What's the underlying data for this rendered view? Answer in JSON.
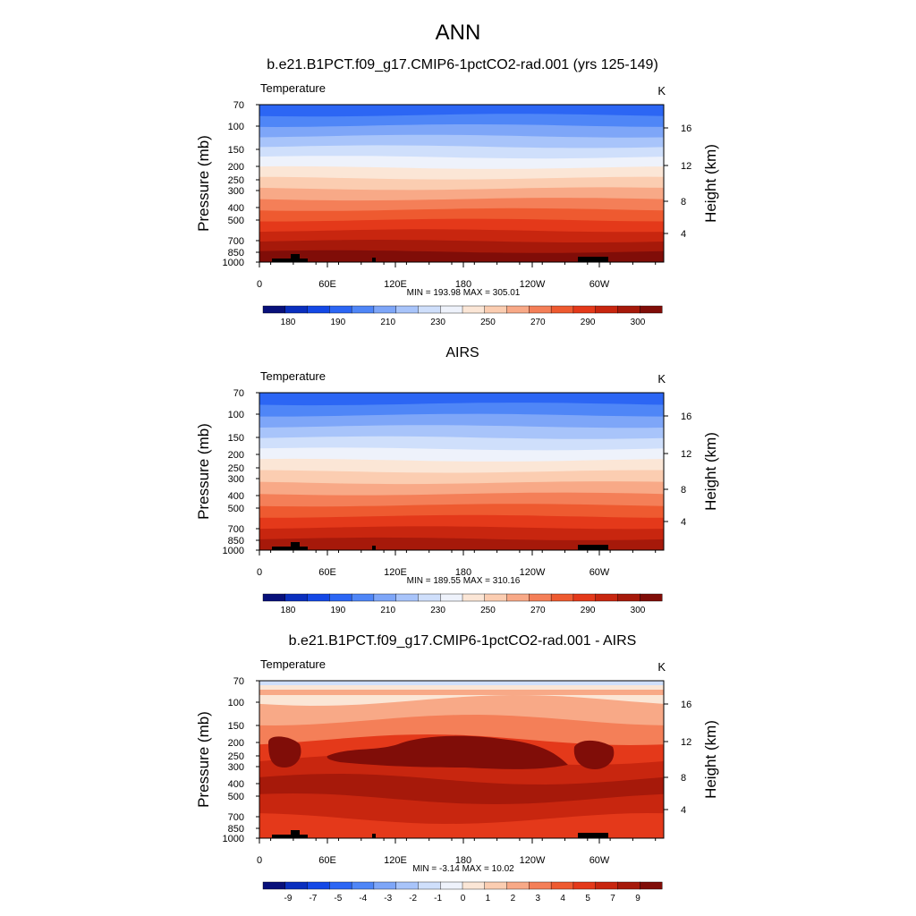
{
  "main_title": "ANN",
  "chart_data": [
    {
      "type": "heatmap",
      "title": "b.e21.B1PCT.f09_g17.CMIP6-1pctCO2-rad.001 (yrs 125-149)",
      "left_label": "Temperature",
      "unit": "K",
      "ylabel": "Pressure (mb)",
      "ylabel_right": "Height (km)",
      "x_ticks": [
        "0",
        "60E",
        "120E",
        "180",
        "120W",
        "60W"
      ],
      "y_ticks": [
        "70",
        "100",
        "150",
        "200",
        "250",
        "300",
        "400",
        "500",
        "700",
        "850",
        "1000"
      ],
      "y_right_ticks": [
        "16",
        "12",
        "8",
        "4"
      ],
      "stats": "MIN = 193.98  MAX = 305.01",
      "colorbar_labels": [
        "180",
        "190",
        "210",
        "230",
        "250",
        "270",
        "290",
        "300"
      ],
      "palette": [
        "#08107a",
        "#0a2fbe",
        "#1448e6",
        "#2c66f4",
        "#4f86f7",
        "#7ea6f8",
        "#a8c4fa",
        "#cfdffb",
        "#eef2fb",
        "#fbe6d6",
        "#fbcdb1",
        "#f8a987",
        "#f47f58",
        "#ee5a30",
        "#e4391a",
        "#c8260f",
        "#a6190a",
        "#800d08"
      ],
      "band_levels": [
        3,
        4,
        5,
        6,
        7,
        8,
        9,
        10,
        11,
        12,
        13,
        14,
        15,
        16,
        17
      ],
      "surface_bands": [
        16,
        17
      ]
    },
    {
      "type": "heatmap",
      "title": "AIRS",
      "left_label": "Temperature",
      "unit": "K",
      "ylabel": "Pressure (mb)",
      "ylabel_right": "Height (km)",
      "x_ticks": [
        "0",
        "60E",
        "120E",
        "180",
        "120W",
        "60W"
      ],
      "y_ticks": [
        "70",
        "100",
        "150",
        "200",
        "250",
        "300",
        "400",
        "500",
        "700",
        "850",
        "1000"
      ],
      "y_right_ticks": [
        "16",
        "12",
        "8",
        "4"
      ],
      "stats": "MIN = 189.55  MAX = 310.16",
      "colorbar_labels": [
        "180",
        "190",
        "210",
        "230",
        "250",
        "270",
        "290",
        "300"
      ],
      "palette": [
        "#08107a",
        "#0a2fbe",
        "#1448e6",
        "#2c66f4",
        "#4f86f7",
        "#7ea6f8",
        "#a8c4fa",
        "#cfdffb",
        "#eef2fb",
        "#fbe6d6",
        "#fbcdb1",
        "#f8a987",
        "#f47f58",
        "#ee5a30",
        "#e4391a",
        "#c8260f",
        "#a6190a",
        "#800d08"
      ],
      "band_levels": [
        3,
        4,
        5,
        6,
        7,
        8,
        9,
        10,
        11,
        12,
        13,
        14,
        15,
        16
      ],
      "surface_bands": [
        15
      ]
    },
    {
      "type": "heatmap",
      "title": "b.e21.B1PCT.f09_g17.CMIP6-1pctCO2-rad.001 - AIRS",
      "left_label": "Temperature",
      "unit": "K",
      "ylabel": "Pressure (mb)",
      "ylabel_right": "Height (km)",
      "x_ticks": [
        "0",
        "60E",
        "120E",
        "180",
        "120W",
        "60W"
      ],
      "y_ticks": [
        "70",
        "100",
        "150",
        "200",
        "250",
        "300",
        "400",
        "500",
        "700",
        "850",
        "1000"
      ],
      "y_right_ticks": [
        "16",
        "12",
        "8",
        "4"
      ],
      "stats": "MIN =  -3.14  MAX =  10.02",
      "colorbar_labels": [
        "-9",
        "-7",
        "-5",
        "-4",
        "-3",
        "-2",
        "-1",
        "0",
        "1",
        "2",
        "3",
        "4",
        "5",
        "7",
        "9"
      ],
      "palette": [
        "#08107a",
        "#0a2fbe",
        "#1448e6",
        "#2c66f4",
        "#4f86f7",
        "#7ea6f8",
        "#a8c4fa",
        "#cfdffb",
        "#eef2fb",
        "#fbe6d6",
        "#fbcdb1",
        "#f8a987",
        "#f47f58",
        "#ee5a30",
        "#e4391a",
        "#c8260f",
        "#a6190a",
        "#800d08"
      ],
      "band_levels": [
        9,
        11,
        12,
        14,
        15,
        16,
        15,
        14
      ],
      "surface_bands": [
        13
      ]
    }
  ]
}
